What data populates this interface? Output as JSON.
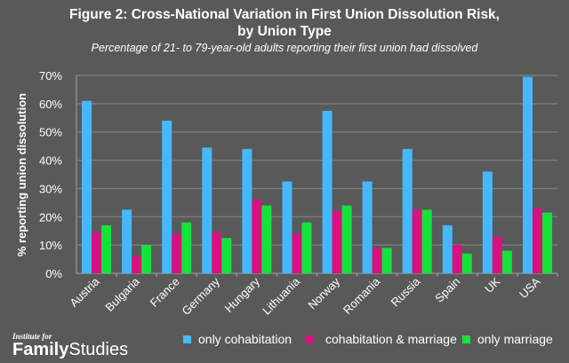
{
  "chart_data": {
    "type": "bar",
    "title": "Figure 2: Cross-National Variation in First Union Dissolution Risk, by Union Type",
    "title_lines": [
      "Figure 2: Cross-National Variation in First Union Dissolution Risk,",
      "by Union Type"
    ],
    "subtitle": "Percentage of 21- to 79-year-old adults reporting their first union had dissolved",
    "xlabel": "",
    "ylabel": "% reporting union dissolution",
    "ylim": [
      0,
      70
    ],
    "yticks": [
      "0%",
      "10%",
      "20%",
      "30%",
      "40%",
      "50%",
      "60%",
      "70%"
    ],
    "grid": true,
    "legend_position": "bottom",
    "categories": [
      "Austria",
      "Bulgaria",
      "France",
      "Germany",
      "Hungary",
      "Lithuania",
      "Norway",
      "Romania",
      "Russia",
      "Spain",
      "UK",
      "USA"
    ],
    "series": [
      {
        "name": "only cohabitation",
        "color": "#45b8fb",
        "values": [
          61,
          22.5,
          54,
          44.5,
          44,
          32.5,
          57.5,
          32.5,
          44,
          17,
          36,
          69.5
        ]
      },
      {
        "name": "cohabitation & marriage",
        "color": "#d9117f",
        "values": [
          14.5,
          6,
          14,
          14.5,
          26,
          14,
          22,
          9,
          22.5,
          10,
          13,
          23
        ]
      },
      {
        "name": "only marriage",
        "color": "#14e33c",
        "values": [
          17,
          10,
          18,
          12.5,
          24,
          18,
          24,
          9,
          22.5,
          7,
          8,
          21.5
        ]
      }
    ]
  },
  "logo": {
    "line1": "Institute for",
    "word1": "Family",
    "word2": "Studies"
  }
}
